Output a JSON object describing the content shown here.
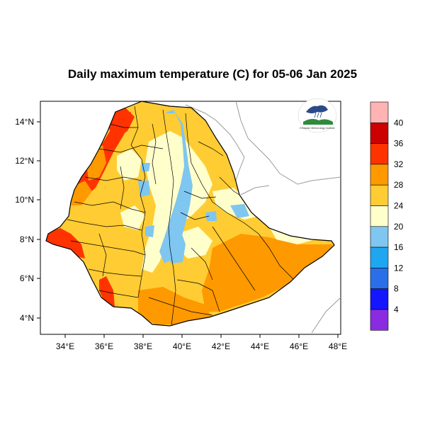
{
  "title": "Daily maximum temperature (C) for 05-06 Jan 2025",
  "map": {
    "lon_ticks": [
      "34°E",
      "36°E",
      "38°E",
      "40°E",
      "42°E",
      "44°E",
      "46°E",
      "48°E"
    ],
    "lat_ticks": [
      "14°N",
      "12°N",
      "10°N",
      "8°N",
      "6°N",
      "4°N"
    ],
    "lon_range": [
      33,
      48.2
    ],
    "lat_range": [
      3.2,
      15
    ]
  },
  "colorbar": {
    "labels": [
      "40",
      "36",
      "32",
      "28",
      "24",
      "20",
      "16",
      "12",
      "8",
      "4"
    ],
    "colors": [
      "#ffb3b3",
      "#cc0000",
      "#ff3300",
      "#ff9900",
      "#ffcc33",
      "#ffffcc",
      "#7fc6f0",
      "#1ea7f0",
      "#2a6fe8",
      "#1515ff",
      "#8a2be2"
    ]
  },
  "logo": {
    "text": "Ethiopian Meteorology Institute"
  },
  "colors": {
    "cool": "#7fc6f0",
    "mild": "#ffffcc",
    "warm": "#ffcc33",
    "hot": "#ff9900",
    "veryhot": "#ff3300"
  }
}
